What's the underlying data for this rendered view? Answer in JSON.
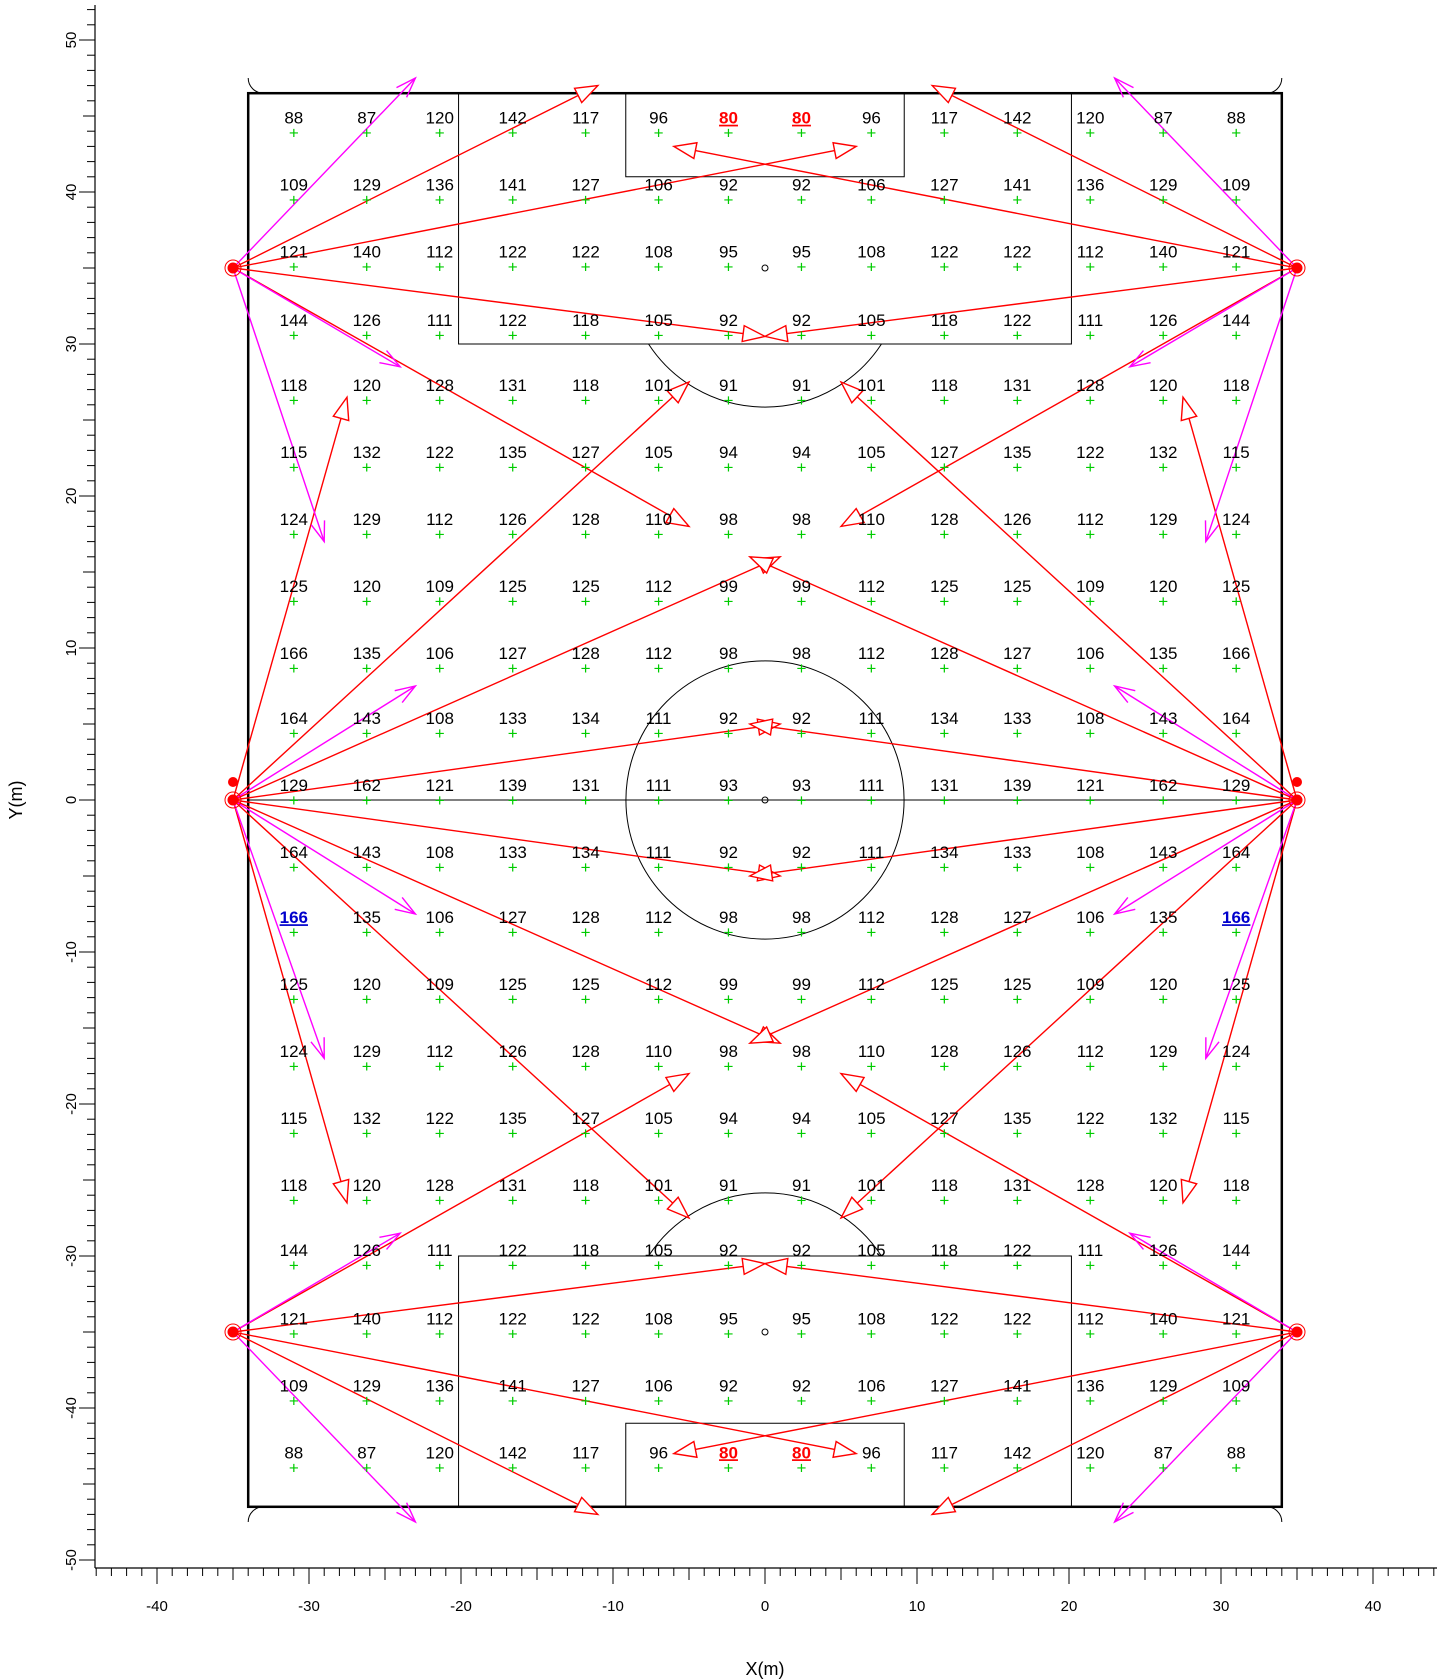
{
  "axes": {
    "x_label": "X(m)",
    "y_label": "Y(m)",
    "x_range": [
      -40,
      40
    ],
    "y_range": [
      -50,
      50
    ],
    "x_ticks": [
      "-40",
      "-30",
      "-20",
      "-10",
      "0",
      "10",
      "20",
      "30",
      "40"
    ],
    "y_ticks": [
      "50",
      "40",
      "30",
      "20",
      "10",
      "0",
      "-10",
      "-20",
      "-30",
      "-40",
      "-50"
    ]
  },
  "grid_x": [
    -31,
    -26.2,
    -21.4,
    -16.6,
    -11.8,
    -7,
    -2.4,
    2.4,
    7,
    11.8,
    16.6,
    21.4,
    26.2,
    31
  ],
  "grid_y": [
    43.9,
    39.5,
    35.1,
    30.6,
    26.3,
    21.9,
    17.5,
    13.1,
    8.7,
    4.4,
    0,
    -4.4,
    -8.7,
    -13.1,
    -17.5,
    -21.9,
    -26.3,
    -30.6,
    -35.1,
    -39.5,
    -43.9
  ],
  "grid_values": [
    [
      88,
      87,
      120,
      142,
      117,
      96,
      80,
      80,
      96,
      117,
      142,
      120,
      87,
      88
    ],
    [
      109,
      129,
      136,
      141,
      127,
      106,
      92,
      92,
      106,
      127,
      141,
      136,
      129,
      109
    ],
    [
      121,
      140,
      112,
      122,
      122,
      108,
      95,
      95,
      108,
      122,
      122,
      112,
      140,
      121
    ],
    [
      144,
      126,
      111,
      122,
      118,
      105,
      92,
      92,
      105,
      118,
      122,
      111,
      126,
      144
    ],
    [
      118,
      120,
      128,
      131,
      118,
      101,
      91,
      91,
      101,
      118,
      131,
      128,
      120,
      118
    ],
    [
      115,
      132,
      122,
      135,
      127,
      105,
      94,
      94,
      105,
      127,
      135,
      122,
      132,
      115
    ],
    [
      124,
      129,
      112,
      126,
      128,
      110,
      98,
      98,
      110,
      128,
      126,
      112,
      129,
      124
    ],
    [
      125,
      120,
      109,
      125,
      125,
      112,
      99,
      99,
      112,
      125,
      125,
      109,
      120,
      125
    ],
    [
      166,
      135,
      106,
      127,
      128,
      112,
      98,
      98,
      112,
      128,
      127,
      106,
      135,
      166
    ],
    [
      164,
      143,
      108,
      133,
      134,
      111,
      92,
      92,
      111,
      134,
      133,
      108,
      143,
      164
    ],
    [
      129,
      162,
      121,
      139,
      131,
      111,
      93,
      93,
      111,
      131,
      139,
      121,
      162,
      129
    ],
    [
      164,
      143,
      108,
      133,
      134,
      111,
      92,
      92,
      111,
      134,
      133,
      108,
      143,
      164
    ],
    [
      "166",
      135,
      106,
      127,
      128,
      112,
      98,
      98,
      112,
      128,
      127,
      106,
      135,
      "166"
    ],
    [
      125,
      120,
      109,
      125,
      125,
      112,
      99,
      99,
      112,
      125,
      125,
      109,
      120,
      125
    ],
    [
      124,
      129,
      112,
      126,
      128,
      110,
      98,
      98,
      110,
      128,
      126,
      112,
      129,
      124
    ],
    [
      115,
      132,
      122,
      135,
      127,
      105,
      94,
      94,
      105,
      127,
      135,
      122,
      132,
      115
    ],
    [
      118,
      120,
      128,
      131,
      118,
      101,
      91,
      91,
      101,
      118,
      131,
      128,
      120,
      118
    ],
    [
      144,
      126,
      111,
      122,
      118,
      105,
      92,
      92,
      105,
      118,
      122,
      111,
      126,
      144
    ],
    [
      121,
      140,
      112,
      122,
      122,
      108,
      95,
      95,
      108,
      122,
      122,
      112,
      140,
      121
    ],
    [
      109,
      129,
      136,
      141,
      127,
      106,
      92,
      92,
      106,
      127,
      141,
      136,
      129,
      109
    ],
    [
      88,
      87,
      120,
      142,
      117,
      96,
      80,
      80,
      96,
      117,
      142,
      120,
      87,
      88
    ]
  ],
  "highlights": {
    "min_value": 80,
    "min_color": "#ff0000",
    "min_positions": [
      [
        0,
        6
      ],
      [
        0,
        7
      ],
      [
        20,
        6
      ],
      [
        20,
        7
      ]
    ],
    "max_value": 166,
    "max_color": "#0000cc",
    "max_positions": [
      [
        12,
        0
      ],
      [
        12,
        13
      ]
    ]
  },
  "colors": {
    "marker": "#00cc00",
    "aim_line": "#ff0000",
    "direction_arrow": "#ff00ff",
    "field": "#000000"
  },
  "poles": [
    [
      -35,
      35
    ],
    [
      35,
      35
    ],
    [
      -35,
      0
    ],
    [
      35,
      0
    ],
    [
      -35,
      -35
    ],
    [
      35,
      -35
    ]
  ],
  "aim_lines": [
    [
      -35,
      35,
      -11,
      47
    ],
    [
      -35,
      35,
      6,
      43
    ],
    [
      -35,
      35,
      0,
      30.5
    ],
    [
      -35,
      35,
      -5,
      18
    ],
    [
      -35,
      0,
      -5,
      27.5
    ],
    [
      -35,
      0,
      1,
      16
    ],
    [
      -35,
      0,
      1,
      5
    ],
    [
      -35,
      0,
      1,
      -5
    ],
    [
      -35,
      0,
      1,
      -16
    ],
    [
      -35,
      0,
      -5,
      -27.5
    ],
    [
      -35,
      0,
      -27.5,
      26.5
    ],
    [
      -35,
      0,
      -27.5,
      -26.5
    ],
    [
      -35,
      -35,
      -11,
      -47
    ],
    [
      -35,
      -35,
      6,
      -43
    ],
    [
      -35,
      -35,
      0,
      -30.5
    ],
    [
      -35,
      -35,
      -5,
      -18
    ],
    [
      35,
      35,
      11,
      47
    ],
    [
      35,
      35,
      -6,
      43
    ],
    [
      35,
      35,
      0,
      30.5
    ],
    [
      35,
      35,
      5,
      18
    ],
    [
      35,
      0,
      5,
      27.5
    ],
    [
      35,
      0,
      -1,
      16
    ],
    [
      35,
      0,
      -1,
      5
    ],
    [
      35,
      0,
      -1,
      -5
    ],
    [
      35,
      0,
      -1,
      -16
    ],
    [
      35,
      0,
      5,
      -27.5
    ],
    [
      35,
      0,
      27.5,
      26.5
    ],
    [
      35,
      0,
      27.5,
      -26.5
    ],
    [
      35,
      -35,
      11,
      -47
    ],
    [
      35,
      -35,
      -6,
      -43
    ],
    [
      35,
      -35,
      0,
      -30.5
    ],
    [
      35,
      -35,
      5,
      -18
    ]
  ],
  "direction_arrows": [
    [
      -35,
      35,
      -23,
      47.5
    ],
    [
      -35,
      35,
      -24,
      28.5
    ],
    [
      -35,
      35,
      -29,
      17
    ],
    [
      -35,
      0,
      -23,
      7.5
    ],
    [
      -35,
      0,
      -23,
      -7.5
    ],
    [
      -35,
      0,
      -29,
      -17
    ],
    [
      -35,
      -35,
      -23,
      -47.5
    ],
    [
      -35,
      -35,
      -24,
      -28.5
    ],
    [
      35,
      35,
      23,
      47.5
    ],
    [
      35,
      35,
      24,
      28.5
    ],
    [
      35,
      35,
      29,
      17
    ],
    [
      35,
      0,
      23,
      7.5
    ],
    [
      35,
      0,
      23,
      -7.5
    ],
    [
      35,
      0,
      29,
      -17
    ],
    [
      35,
      -35,
      23,
      -47.5
    ],
    [
      35,
      -35,
      24,
      -28.5
    ]
  ]
}
